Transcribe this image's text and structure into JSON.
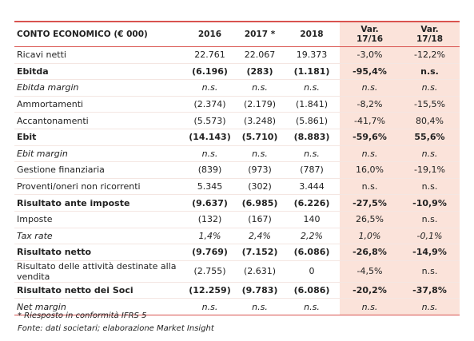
{
  "table": {
    "columns": [
      "CONTO ECONOMICO (€ 000)",
      "2016",
      "2017 *",
      "2018",
      [
        "Var.",
        "17/16"
      ],
      [
        "Var.",
        "17/18"
      ]
    ],
    "rows": [
      {
        "style": "normal",
        "cells": [
          "Ricavi netti",
          "22.761",
          "22.067",
          "19.373",
          "-3,0%",
          "-12,2%"
        ]
      },
      {
        "style": "bold",
        "cells": [
          "Ebitda",
          "(6.196)",
          "(283)",
          "(1.181)",
          "-95,4%",
          "n.s."
        ]
      },
      {
        "style": "italic",
        "cells": [
          "Ebitda margin",
          "n.s.",
          "n.s.",
          "n.s.",
          "n.s.",
          "n.s."
        ]
      },
      {
        "style": "normal",
        "cells": [
          "Ammortamenti",
          "(2.374)",
          "(2.179)",
          "(1.841)",
          "-8,2%",
          "-15,5%"
        ]
      },
      {
        "style": "normal",
        "cells": [
          "Accantonamenti",
          "(5.573)",
          "(3.248)",
          "(5.861)",
          "-41,7%",
          "80,4%"
        ]
      },
      {
        "style": "bold",
        "cells": [
          "Ebit",
          "(14.143)",
          "(5.710)",
          "(8.883)",
          "-59,6%",
          "55,6%"
        ]
      },
      {
        "style": "italic",
        "cells": [
          "Ebit margin",
          "n.s.",
          "n.s.",
          "n.s.",
          "n.s.",
          "n.s."
        ]
      },
      {
        "style": "normal",
        "cells": [
          "Gestione finanziaria",
          "(839)",
          "(973)",
          "(787)",
          "16,0%",
          "-19,1%"
        ]
      },
      {
        "style": "normal",
        "cells": [
          "Proventi/oneri non ricorrenti",
          "5.345",
          "(302)",
          "3.444",
          "n.s.",
          "n.s."
        ]
      },
      {
        "style": "bold",
        "cells": [
          "Risultato ante imposte",
          "(9.637)",
          "(6.985)",
          "(6.226)",
          "-27,5%",
          "-10,9%"
        ]
      },
      {
        "style": "normal",
        "cells": [
          "Imposte",
          "(132)",
          "(167)",
          "140",
          "26,5%",
          "n.s."
        ]
      },
      {
        "style": "italic",
        "cells": [
          "Tax rate",
          "1,4%",
          "2,4%",
          "2,2%",
          "1,0%",
          "-0,1%"
        ]
      },
      {
        "style": "bold",
        "cells": [
          "Risultato netto",
          "(9.769)",
          "(7.152)",
          "(6.086)",
          "-26,8%",
          "-14,9%"
        ]
      },
      {
        "style": "normal",
        "cells": [
          "Risultato delle attività destinate alla vendita",
          "(2.755)",
          "(2.631)",
          "0",
          "-4,5%",
          "n.s."
        ]
      },
      {
        "style": "bold",
        "cells": [
          "Risultato netto dei Soci",
          "(12.259)",
          "(9.783)",
          "(6.086)",
          "-20,2%",
          "-37,8%"
        ]
      },
      {
        "style": "italic",
        "cells": [
          "Net margin",
          "n.s.",
          "n.s.",
          "n.s.",
          "n.s.",
          "n.s."
        ]
      }
    ]
  },
  "footnotes": [
    "* Riesposto in conformità IFRS 5",
    "Fonte: dati societari; elaborazione Market Insight"
  ]
}
